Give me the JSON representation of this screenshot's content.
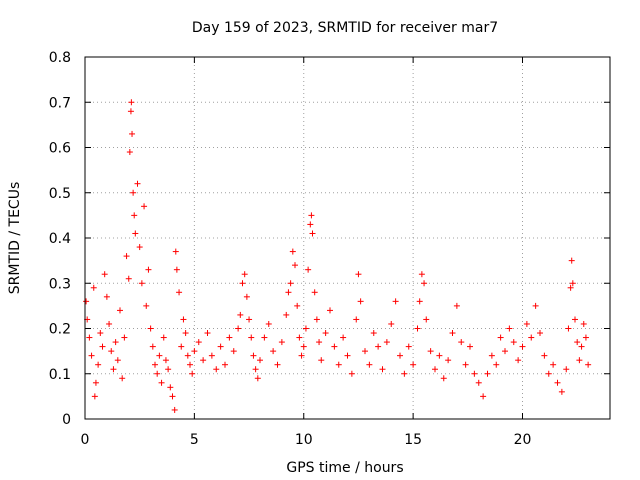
{
  "chart_data": {
    "type": "scatter",
    "title": "Day 159 of 2023, SRMTID for receiver mar7",
    "xlabel": "GPS time / hours",
    "ylabel": "SRMTID / TECUs",
    "xlim": [
      0,
      24
    ],
    "ylim": [
      0,
      0.8
    ],
    "xticks": [
      0,
      5,
      10,
      15,
      20
    ],
    "yticks": [
      0,
      0.1,
      0.2,
      0.3,
      0.4,
      0.5,
      0.6,
      0.7,
      0.8
    ],
    "marker": "+",
    "color": "#ff0000",
    "grid": true,
    "series": [
      {
        "name": "mar7",
        "points": [
          [
            0.05,
            0.26
          ],
          [
            0.1,
            0.22
          ],
          [
            0.2,
            0.18
          ],
          [
            0.3,
            0.14
          ],
          [
            0.4,
            0.29
          ],
          [
            0.45,
            0.05
          ],
          [
            0.5,
            0.08
          ],
          [
            0.6,
            0.12
          ],
          [
            0.7,
            0.19
          ],
          [
            0.8,
            0.16
          ],
          [
            0.9,
            0.32
          ],
          [
            1.0,
            0.27
          ],
          [
            1.1,
            0.21
          ],
          [
            1.2,
            0.15
          ],
          [
            1.3,
            0.11
          ],
          [
            1.4,
            0.17
          ],
          [
            1.5,
            0.13
          ],
          [
            1.6,
            0.24
          ],
          [
            1.7,
            0.09
          ],
          [
            1.8,
            0.18
          ],
          [
            1.9,
            0.36
          ],
          [
            2.0,
            0.31
          ],
          [
            2.05,
            0.59
          ],
          [
            2.1,
            0.68
          ],
          [
            2.12,
            0.7
          ],
          [
            2.15,
            0.63
          ],
          [
            2.2,
            0.5
          ],
          [
            2.25,
            0.45
          ],
          [
            2.3,
            0.41
          ],
          [
            2.4,
            0.52
          ],
          [
            2.5,
            0.38
          ],
          [
            2.6,
            0.3
          ],
          [
            2.7,
            0.47
          ],
          [
            2.8,
            0.25
          ],
          [
            2.9,
            0.33
          ],
          [
            3.0,
            0.2
          ],
          [
            3.1,
            0.16
          ],
          [
            3.2,
            0.12
          ],
          [
            3.3,
            0.1
          ],
          [
            3.4,
            0.14
          ],
          [
            3.5,
            0.08
          ],
          [
            3.6,
            0.18
          ],
          [
            3.7,
            0.13
          ],
          [
            3.8,
            0.11
          ],
          [
            3.9,
            0.07
          ],
          [
            4.0,
            0.05
          ],
          [
            4.1,
            0.02
          ],
          [
            4.15,
            0.37
          ],
          [
            4.2,
            0.33
          ],
          [
            4.3,
            0.28
          ],
          [
            4.4,
            0.16
          ],
          [
            4.5,
            0.22
          ],
          [
            4.6,
            0.19
          ],
          [
            4.7,
            0.14
          ],
          [
            4.8,
            0.12
          ],
          [
            4.9,
            0.1
          ],
          [
            5.0,
            0.15
          ],
          [
            5.2,
            0.17
          ],
          [
            5.4,
            0.13
          ],
          [
            5.6,
            0.19
          ],
          [
            5.8,
            0.14
          ],
          [
            6.0,
            0.11
          ],
          [
            6.2,
            0.16
          ],
          [
            6.4,
            0.12
          ],
          [
            6.6,
            0.18
          ],
          [
            6.8,
            0.15
          ],
          [
            7.0,
            0.2
          ],
          [
            7.1,
            0.23
          ],
          [
            7.2,
            0.3
          ],
          [
            7.3,
            0.32
          ],
          [
            7.4,
            0.27
          ],
          [
            7.5,
            0.22
          ],
          [
            7.6,
            0.18
          ],
          [
            7.7,
            0.14
          ],
          [
            7.8,
            0.11
          ],
          [
            7.9,
            0.09
          ],
          [
            8.0,
            0.13
          ],
          [
            8.2,
            0.18
          ],
          [
            8.4,
            0.21
          ],
          [
            8.6,
            0.15
          ],
          [
            8.8,
            0.12
          ],
          [
            9.0,
            0.17
          ],
          [
            9.2,
            0.23
          ],
          [
            9.3,
            0.28
          ],
          [
            9.4,
            0.3
          ],
          [
            9.5,
            0.37
          ],
          [
            9.6,
            0.34
          ],
          [
            9.7,
            0.25
          ],
          [
            9.8,
            0.18
          ],
          [
            9.9,
            0.14
          ],
          [
            10.0,
            0.16
          ],
          [
            10.1,
            0.2
          ],
          [
            10.2,
            0.33
          ],
          [
            10.3,
            0.43
          ],
          [
            10.35,
            0.45
          ],
          [
            10.4,
            0.41
          ],
          [
            10.5,
            0.28
          ],
          [
            10.6,
            0.22
          ],
          [
            10.7,
            0.17
          ],
          [
            10.8,
            0.13
          ],
          [
            11.0,
            0.19
          ],
          [
            11.2,
            0.24
          ],
          [
            11.4,
            0.16
          ],
          [
            11.6,
            0.12
          ],
          [
            11.8,
            0.18
          ],
          [
            12.0,
            0.14
          ],
          [
            12.2,
            0.1
          ],
          [
            12.4,
            0.22
          ],
          [
            12.5,
            0.32
          ],
          [
            12.6,
            0.26
          ],
          [
            12.8,
            0.15
          ],
          [
            13.0,
            0.12
          ],
          [
            13.2,
            0.19
          ],
          [
            13.4,
            0.16
          ],
          [
            13.6,
            0.11
          ],
          [
            13.8,
            0.17
          ],
          [
            14.0,
            0.21
          ],
          [
            14.2,
            0.26
          ],
          [
            14.4,
            0.14
          ],
          [
            14.6,
            0.1
          ],
          [
            14.8,
            0.16
          ],
          [
            15.0,
            0.12
          ],
          [
            15.2,
            0.2
          ],
          [
            15.3,
            0.26
          ],
          [
            15.4,
            0.32
          ],
          [
            15.5,
            0.3
          ],
          [
            15.6,
            0.22
          ],
          [
            15.8,
            0.15
          ],
          [
            16.0,
            0.11
          ],
          [
            16.2,
            0.14
          ],
          [
            16.4,
            0.09
          ],
          [
            16.6,
            0.13
          ],
          [
            16.8,
            0.19
          ],
          [
            17.0,
            0.25
          ],
          [
            17.2,
            0.17
          ],
          [
            17.4,
            0.12
          ],
          [
            17.6,
            0.16
          ],
          [
            17.8,
            0.1
          ],
          [
            18.0,
            0.08
          ],
          [
            18.2,
            0.05
          ],
          [
            18.4,
            0.1
          ],
          [
            18.6,
            0.14
          ],
          [
            18.8,
            0.12
          ],
          [
            19.0,
            0.18
          ],
          [
            19.2,
            0.15
          ],
          [
            19.4,
            0.2
          ],
          [
            19.6,
            0.17
          ],
          [
            19.8,
            0.13
          ],
          [
            20.0,
            0.16
          ],
          [
            20.2,
            0.21
          ],
          [
            20.4,
            0.18
          ],
          [
            20.6,
            0.25
          ],
          [
            20.8,
            0.19
          ],
          [
            21.0,
            0.14
          ],
          [
            21.2,
            0.1
          ],
          [
            21.4,
            0.12
          ],
          [
            21.6,
            0.08
          ],
          [
            21.8,
            0.06
          ],
          [
            22.0,
            0.11
          ],
          [
            22.1,
            0.2
          ],
          [
            22.2,
            0.29
          ],
          [
            22.25,
            0.35
          ],
          [
            22.3,
            0.3
          ],
          [
            22.4,
            0.22
          ],
          [
            22.5,
            0.17
          ],
          [
            22.6,
            0.13
          ],
          [
            22.7,
            0.16
          ],
          [
            22.8,
            0.21
          ],
          [
            22.9,
            0.18
          ],
          [
            23.0,
            0.12
          ]
        ]
      }
    ]
  }
}
